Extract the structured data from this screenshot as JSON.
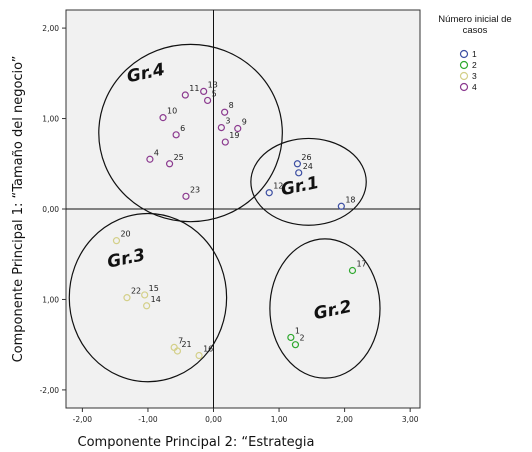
{
  "chart_data": {
    "type": "scatter",
    "xlabel": "Componente Principal 2: “Estrategia",
    "ylabel": "Componente Principal 1: “Tamaño del negocio”",
    "xlim": [
      -2.25,
      3.15
    ],
    "ylim": [
      -2.2,
      2.2
    ],
    "x_ticks": [
      "-2,00",
      "-1,00",
      "0,00",
      "1,00",
      "2,00",
      "3,00"
    ],
    "y_ticks": [
      "2,00",
      "1,00",
      "0,00",
      "1,00",
      "-2,00"
    ],
    "reference_lines": {
      "x": 0,
      "y": 0
    },
    "legend": {
      "title_lines": [
        "Número inicial de",
        "casos"
      ],
      "position": "right",
      "entries": [
        {
          "label": "1",
          "color": "#3d4fa3"
        },
        {
          "label": "2",
          "color": "#2ea82e"
        },
        {
          "label": "3",
          "color": "#d4d08a"
        },
        {
          "label": "4",
          "color": "#8b3a8f"
        }
      ]
    },
    "series": [
      {
        "name": "1",
        "color": "#3d4fa3",
        "points": [
          {
            "label": "24",
            "x": 1.3,
            "y": 0.4
          },
          {
            "label": "26",
            "x": 1.28,
            "y": 0.5
          },
          {
            "label": "12",
            "x": 0.85,
            "y": 0.18
          },
          {
            "label": "18",
            "x": 1.95,
            "y": 0.03
          }
        ]
      },
      {
        "name": "2",
        "color": "#2ea82e",
        "points": [
          {
            "label": "17",
            "x": 2.12,
            "y": -0.68
          },
          {
            "label": "1",
            "x": 1.18,
            "y": -1.42
          },
          {
            "label": "2",
            "x": 1.25,
            "y": -1.5
          }
        ]
      },
      {
        "name": "3",
        "color": "#d4d08a",
        "points": [
          {
            "label": "20",
            "x": -1.48,
            "y": -0.35
          },
          {
            "label": "22",
            "x": -1.32,
            "y": -0.98
          },
          {
            "label": "15",
            "x": -1.05,
            "y": -0.95
          },
          {
            "label": "14",
            "x": -1.02,
            "y": -1.07
          },
          {
            "label": "7",
            "x": -0.6,
            "y": -1.53
          },
          {
            "label": "21",
            "x": -0.55,
            "y": -1.57
          },
          {
            "label": "16",
            "x": -0.22,
            "y": -1.62
          }
        ]
      },
      {
        "name": "4",
        "color": "#8b3a8f",
        "points": [
          {
            "label": "11",
            "x": -0.43,
            "y": 1.26
          },
          {
            "label": "13",
            "x": -0.15,
            "y": 1.3
          },
          {
            "label": "5",
            "x": -0.09,
            "y": 1.2
          },
          {
            "label": "10",
            "x": -0.77,
            "y": 1.01
          },
          {
            "label": "8",
            "x": 0.17,
            "y": 1.07
          },
          {
            "label": "6",
            "x": -0.57,
            "y": 0.82
          },
          {
            "label": "3",
            "x": 0.12,
            "y": 0.9
          },
          {
            "label": "9",
            "x": 0.37,
            "y": 0.89
          },
          {
            "label": "19",
            "x": 0.18,
            "y": 0.74
          },
          {
            "label": "4",
            "x": -0.97,
            "y": 0.55
          },
          {
            "label": "25",
            "x": -0.67,
            "y": 0.5
          },
          {
            "label": "23",
            "x": -0.42,
            "y": 0.14
          }
        ]
      }
    ],
    "group_annotations": [
      {
        "text": "Gr.4",
        "cx": -0.35,
        "cy": 0.84,
        "rx": 1.4,
        "ry": 0.98,
        "label_x": -1.3,
        "label_y": 1.4
      },
      {
        "text": "Gr.1",
        "cx": 1.45,
        "cy": 0.3,
        "rx": 0.88,
        "ry": 0.48,
        "label_x": 1.05,
        "label_y": 0.15
      },
      {
        "text": "Gr.3",
        "cx": -1.0,
        "cy": -0.98,
        "rx": 1.2,
        "ry": 0.93,
        "label_x": -1.6,
        "label_y": -0.65
      },
      {
        "text": "Gr.2",
        "cx": 1.7,
        "cy": -1.1,
        "rx": 0.84,
        "ry": 0.77,
        "label_x": 1.55,
        "label_y": -1.22
      }
    ]
  }
}
